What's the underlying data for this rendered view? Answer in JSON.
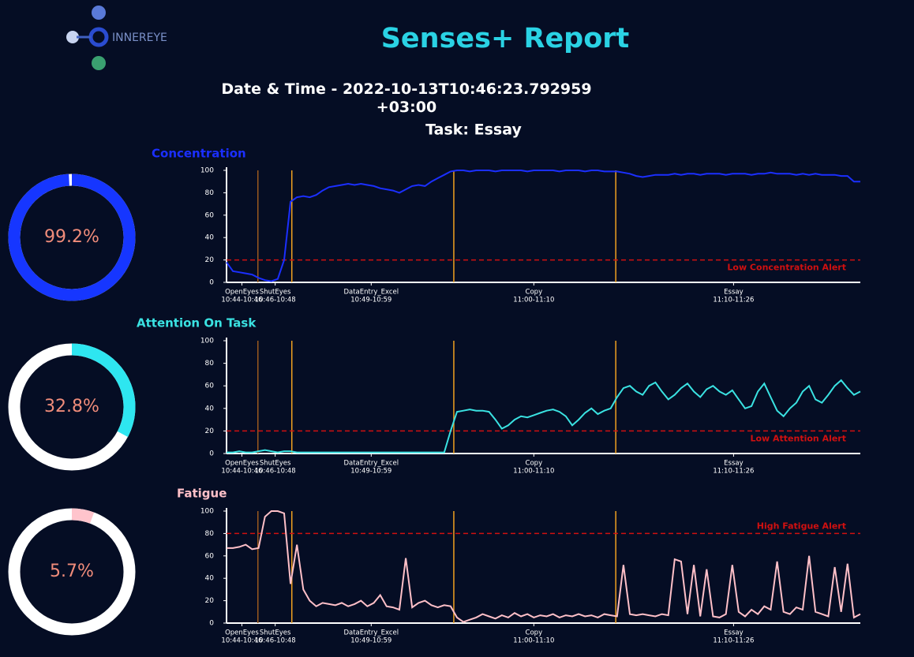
{
  "header": {
    "logo": "INNEREYE",
    "title": "Senses+ Report",
    "datetime": "Date & Time - 2022-10-13T10:46:23.792959+03:00",
    "task": "Task: Essay"
  },
  "chart_data": [
    {
      "type": "donut",
      "values": [
        99.2
      ],
      "value_labels": [
        "99.2%"
      ],
      "color": "#1636ff",
      "track_color": "#ffffff"
    },
    {
      "type": "line",
      "title": "Concentration",
      "color": "#1b2fff",
      "xlim": [
        0,
        99
      ],
      "ylim": [
        0,
        100
      ],
      "yticks": [
        0,
        20,
        40,
        60,
        80,
        100
      ],
      "xticks": [
        {
          "value": 2.4,
          "label": "OpenEyes"
        },
        {
          "value": 7.6,
          "label": "ShutEyes"
        },
        {
          "value": 22.6,
          "label": "DataEntry_Excel"
        },
        {
          "value": 48,
          "label": "Copy"
        },
        {
          "value": 79.2,
          "label": "Essay"
        }
      ],
      "xticks_time": [
        {
          "value": 2.4,
          "label": "10:44-10:46"
        },
        {
          "value": 7.6,
          "label": "10:46-10:48"
        },
        {
          "value": 22.6,
          "label": "10:49-10:59"
        },
        {
          "value": 48,
          "label": "11:00-11:10"
        },
        {
          "value": 79.2,
          "label": "11:10-11:26"
        }
      ],
      "boundaries": [
        4.9,
        10.2,
        35.5,
        60.8
      ],
      "boundary_colors": [
        "#9a5a1e",
        "#f0a020",
        "#f0a020",
        "#f0a020"
      ],
      "threshold": {
        "value": 20,
        "label": "Low Concentration Alert"
      },
      "values": [
        18,
        10,
        9,
        8,
        7,
        4,
        2,
        1,
        3,
        20,
        72,
        76,
        77,
        76,
        78,
        82,
        85,
        86,
        87,
        88,
        87,
        88,
        87,
        86,
        84,
        83,
        82,
        80,
        83,
        86,
        87,
        86,
        90,
        93,
        96,
        99,
        100,
        100,
        99,
        100,
        100,
        100,
        99,
        100,
        100,
        100,
        100,
        99,
        100,
        100,
        100,
        100,
        99,
        100,
        100,
        100,
        99,
        100,
        100,
        99,
        99,
        99,
        98,
        97,
        95,
        94,
        95,
        96,
        96,
        96,
        97,
        96,
        97,
        97,
        96,
        97,
        97,
        97,
        96,
        97,
        97,
        97,
        96,
        97,
        97,
        98,
        97,
        97,
        97,
        96,
        97,
        96,
        97,
        96,
        96,
        96,
        95,
        95,
        90,
        90
      ]
    },
    {
      "type": "donut",
      "values": [
        32.8
      ],
      "value_labels": [
        "32.8%"
      ],
      "color": "#2ee6f0",
      "track_color": "#ffffff"
    },
    {
      "type": "line",
      "title": "Attention On Task",
      "color": "#3ae2e2",
      "xlim": [
        0,
        99
      ],
      "ylim": [
        0,
        100
      ],
      "yticks": [
        0,
        20,
        40,
        60,
        80,
        100
      ],
      "xticks": [
        {
          "value": 2.4,
          "label": "OpenEyes"
        },
        {
          "value": 7.6,
          "label": "ShutEyes"
        },
        {
          "value": 22.6,
          "label": "DataEntry_Excel"
        },
        {
          "value": 48,
          "label": "Copy"
        },
        {
          "value": 79.2,
          "label": "Essay"
        }
      ],
      "xticks_time": [
        {
          "value": 2.4,
          "label": "10:44-10:46"
        },
        {
          "value": 7.6,
          "label": "10:46-10:48"
        },
        {
          "value": 22.6,
          "label": "10:49-10:59"
        },
        {
          "value": 48,
          "label": "11:00-11:10"
        },
        {
          "value": 79.2,
          "label": "11:10-11:26"
        }
      ],
      "boundaries": [
        4.9,
        10.2,
        35.5,
        60.8
      ],
      "boundary_colors": [
        "#9a5a1e",
        "#f0a020",
        "#f0a020",
        "#f0a020"
      ],
      "threshold": {
        "value": 20,
        "label": "Low Attention Alert"
      },
      "values": [
        1,
        1,
        2,
        1,
        1,
        2,
        3,
        2,
        1,
        2,
        2,
        1,
        1,
        1,
        1,
        1,
        1,
        1,
        1,
        1,
        1,
        1,
        1,
        1,
        1,
        1,
        1,
        1,
        1,
        1,
        1,
        1,
        1,
        1,
        1,
        20,
        37,
        38,
        39,
        38,
        38,
        37,
        30,
        22,
        25,
        30,
        33,
        32,
        34,
        36,
        38,
        39,
        37,
        33,
        25,
        30,
        36,
        40,
        35,
        38,
        40,
        50,
        58,
        60,
        55,
        52,
        60,
        63,
        55,
        48,
        52,
        58,
        62,
        55,
        50,
        57,
        60,
        55,
        52,
        56,
        48,
        40,
        42,
        55,
        62,
        50,
        38,
        33,
        40,
        45,
        55,
        60,
        48,
        45,
        52,
        60,
        65,
        58,
        52,
        55
      ]
    },
    {
      "type": "donut",
      "values": [
        5.7
      ],
      "value_labels": [
        "5.7%"
      ],
      "color": "#ffc4cc",
      "track_color": "#ffffff"
    },
    {
      "type": "line",
      "title": "Fatigue",
      "color": "#ffc0c8",
      "xlim": [
        0,
        99
      ],
      "ylim": [
        0,
        100
      ],
      "yticks": [
        0,
        20,
        40,
        60,
        80,
        100
      ],
      "xticks": [
        {
          "value": 2.4,
          "label": "OpenEyes"
        },
        {
          "value": 7.6,
          "label": "ShutEyes"
        },
        {
          "value": 22.6,
          "label": "DataEntry_Excel"
        },
        {
          "value": 48,
          "label": "Copy"
        },
        {
          "value": 79.2,
          "label": "Essay"
        }
      ],
      "xticks_time": [
        {
          "value": 2.4,
          "label": "10:44-10:46"
        },
        {
          "value": 7.6,
          "label": "10:46-10:48"
        },
        {
          "value": 22.6,
          "label": "10:49-10:59"
        },
        {
          "value": 48,
          "label": "11:00-11:10"
        },
        {
          "value": 79.2,
          "label": "11:10-11:26"
        }
      ],
      "boundaries": [
        4.9,
        10.2,
        35.5,
        60.8
      ],
      "boundary_colors": [
        "#9a5a1e",
        "#f0a020",
        "#f0a020",
        "#f0a020"
      ],
      "threshold": {
        "value": 80,
        "label": "High Fatigue Alert"
      },
      "values": [
        67,
        67,
        68,
        70,
        66,
        67,
        95,
        100,
        100,
        98,
        35,
        70,
        30,
        20,
        15,
        18,
        17,
        16,
        18,
        15,
        17,
        20,
        15,
        18,
        25,
        15,
        14,
        12,
        58,
        14,
        18,
        20,
        16,
        14,
        16,
        15,
        5,
        1,
        3,
        5,
        8,
        6,
        4,
        7,
        5,
        9,
        6,
        8,
        5,
        7,
        6,
        8,
        5,
        7,
        6,
        8,
        6,
        7,
        5,
        8,
        7,
        6,
        52,
        8,
        7,
        8,
        7,
        6,
        8,
        7,
        57,
        55,
        8,
        52,
        6,
        48,
        6,
        5,
        8,
        52,
        10,
        6,
        12,
        8,
        15,
        12,
        55,
        10,
        8,
        14,
        12,
        60,
        10,
        8,
        6,
        50,
        10,
        53,
        5,
        8
      ]
    }
  ]
}
